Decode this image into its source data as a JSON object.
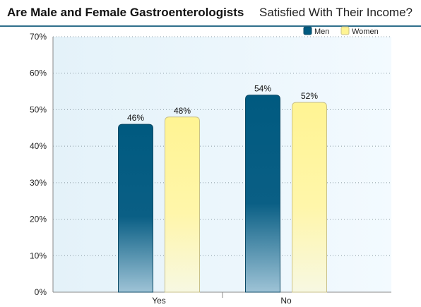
{
  "chart_data": {
    "type": "bar",
    "title_bold": "Are Male and Female Gastroenterologists",
    "title_regular": "Satisfied With Their Income?",
    "categories": [
      "Yes",
      "No"
    ],
    "series": [
      {
        "name": "Men",
        "values": [
          46,
          54
        ],
        "labels": [
          "46%",
          "54%"
        ]
      },
      {
        "name": "Women",
        "values": [
          48,
          52
        ],
        "labels": [
          "48%",
          "52%"
        ]
      }
    ],
    "ylim": [
      0,
      70
    ],
    "yticks": [
      "0%",
      "10%",
      "20%",
      "30%",
      "40%",
      "50%",
      "60%",
      "70%"
    ],
    "grid": true,
    "legend": "top-right",
    "colors": {
      "Men": "#005a80",
      "Women": "#fff7a0"
    }
  }
}
